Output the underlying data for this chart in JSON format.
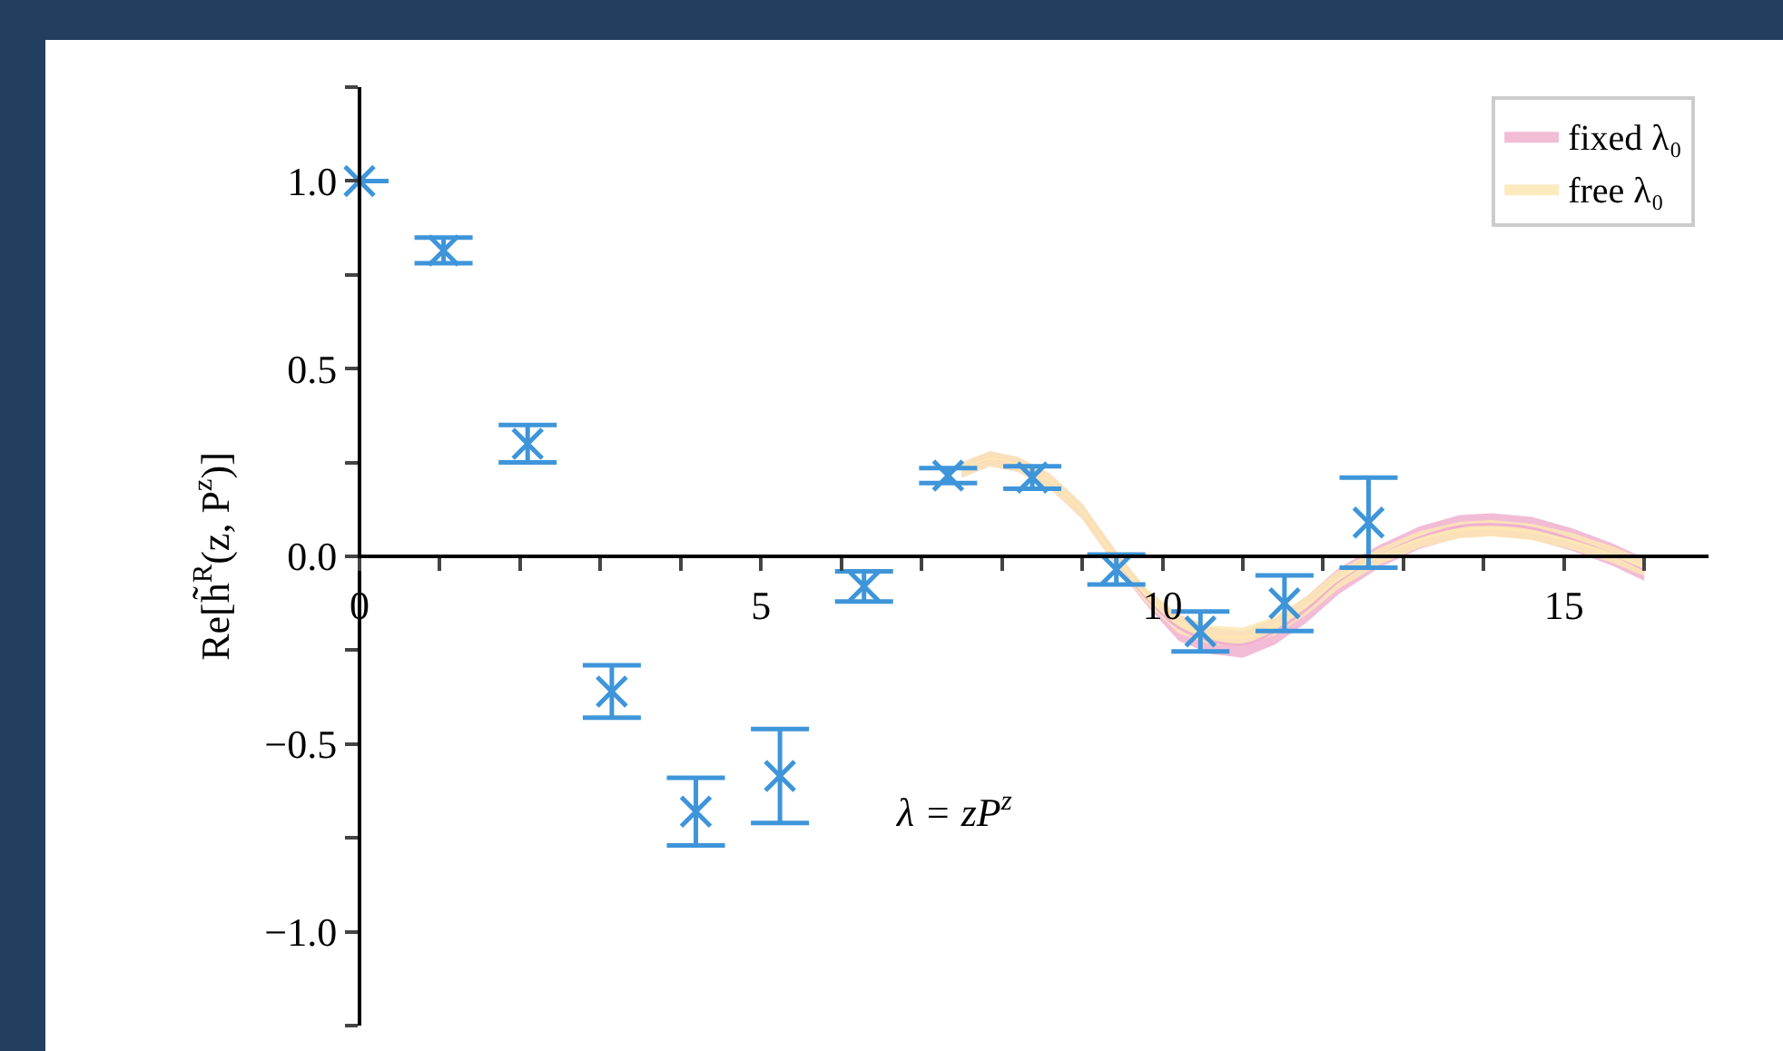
{
  "chart_data": {
    "type": "scatter",
    "xlabel": null,
    "ylabel": "Re[h̃$^{R}$(z, P$^{z}$)]",
    "annotations": [
      "λ = zP$^{z}$"
    ],
    "x": [
      0,
      1.047,
      2.094,
      3.142,
      4.189,
      5.236,
      6.283,
      7.33,
      8.378,
      9.425,
      10.472,
      11.519,
      12.566
    ],
    "series": [
      {
        "type": "scatter",
        "color": "#3e95d9",
        "marker": "cross",
        "values": [
          1.0,
          0.815,
          0.3,
          -0.36,
          -0.68,
          -0.585,
          -0.08,
          0.215,
          0.21,
          -0.035,
          -0.2,
          -0.125,
          0.09
        ],
        "errors": [
          null,
          0.034,
          0.05,
          0.07,
          0.09,
          0.125,
          0.04,
          0.02,
          0.03,
          0.04,
          0.053,
          0.074,
          0.12
        ]
      },
      {
        "type": "line",
        "name": "fixed λ₀",
        "color": "#f0b1d0",
        "x": [
          7.5,
          7.85,
          8.2,
          8.6,
          9.0,
          9.4,
          9.8,
          10.2,
          10.6,
          11.0,
          11.4,
          11.8,
          12.2,
          12.7,
          13.2,
          13.7,
          14.1,
          14.6,
          15.1,
          15.6,
          16.0
        ],
        "values": [
          0.23,
          0.26,
          0.245,
          0.2,
          0.12,
          0.0,
          -0.11,
          -0.19,
          -0.225,
          -0.235,
          -0.2,
          -0.14,
          -0.065,
          0.0,
          0.05,
          0.08,
          0.085,
          0.075,
          0.045,
          0.005,
          -0.035
        ],
        "lower": [
          0.21,
          0.24,
          0.225,
          0.18,
          0.1,
          -0.02,
          -0.13,
          -0.225,
          -0.26,
          -0.27,
          -0.235,
          -0.175,
          -0.1,
          -0.03,
          0.02,
          0.05,
          0.055,
          0.045,
          0.015,
          -0.025,
          -0.065
        ],
        "upper": [
          0.25,
          0.28,
          0.265,
          0.22,
          0.14,
          0.02,
          -0.09,
          -0.155,
          -0.19,
          -0.2,
          -0.165,
          -0.105,
          -0.03,
          0.03,
          0.08,
          0.11,
          0.115,
          0.105,
          0.075,
          0.035,
          -0.005
        ]
      },
      {
        "type": "line",
        "name": "free λ₀",
        "color": "#fde8b5",
        "x": [
          7.5,
          7.85,
          8.2,
          8.6,
          9.0,
          9.4,
          9.8,
          10.2,
          10.6,
          11.0,
          11.4,
          11.8,
          12.2,
          12.7,
          13.2,
          13.7,
          14.1,
          14.6,
          15.1,
          15.6,
          16.0
        ],
        "values": [
          0.23,
          0.26,
          0.245,
          0.2,
          0.12,
          0.0,
          -0.105,
          -0.18,
          -0.21,
          -0.215,
          -0.185,
          -0.13,
          -0.06,
          0.0,
          0.045,
          0.07,
          0.075,
          0.065,
          0.04,
          0.005,
          -0.03
        ],
        "lower": [
          0.21,
          0.24,
          0.225,
          0.18,
          0.1,
          -0.02,
          -0.125,
          -0.205,
          -0.235,
          -0.24,
          -0.21,
          -0.155,
          -0.085,
          -0.022,
          0.023,
          0.048,
          0.053,
          0.043,
          0.018,
          -0.017,
          -0.052
        ],
        "upper": [
          0.25,
          0.28,
          0.265,
          0.22,
          0.14,
          0.02,
          -0.085,
          -0.155,
          -0.185,
          -0.19,
          -0.16,
          -0.105,
          -0.035,
          0.022,
          0.067,
          0.092,
          0.097,
          0.087,
          0.062,
          0.027,
          -0.008
        ]
      }
    ],
    "xlim": [
      0,
      16.8
    ],
    "ylim": [
      -1.25,
      1.25
    ],
    "xticks": [
      0,
      {
        "value": 1,
        "label": null
      },
      {
        "value": 2,
        "label": null
      },
      {
        "value": 3,
        "label": null
      },
      {
        "value": 4,
        "label": null
      },
      5,
      {
        "value": 6,
        "label": null
      },
      {
        "value": 7,
        "label": null
      },
      {
        "value": 8,
        "label": null
      },
      {
        "value": 9,
        "label": null
      },
      10,
      {
        "value": 11,
        "label": null
      },
      {
        "value": 12,
        "label": null
      },
      {
        "value": 13,
        "label": null
      },
      {
        "value": 14,
        "label": null
      },
      15,
      {
        "value": 16,
        "label": null
      }
    ],
    "yticks": [
      {
        "value": -1.25,
        "label": null
      },
      {
        "value": -1,
        "label": "−1.0"
      },
      {
        "value": -0.75,
        "label": null
      },
      {
        "value": -0.5,
        "label": "−0.5"
      },
      {
        "value": -0.25,
        "label": null
      },
      {
        "value": 0,
        "label": "0.0"
      },
      {
        "value": 0.25,
        "label": null
      },
      {
        "value": 0.5,
        "label": "0.5"
      },
      {
        "value": 0.75,
        "label": null
      },
      {
        "value": 1,
        "label": "1.0"
      },
      {
        "value": 1.25,
        "label": null
      }
    ],
    "grid": false,
    "legend": "top right"
  }
}
